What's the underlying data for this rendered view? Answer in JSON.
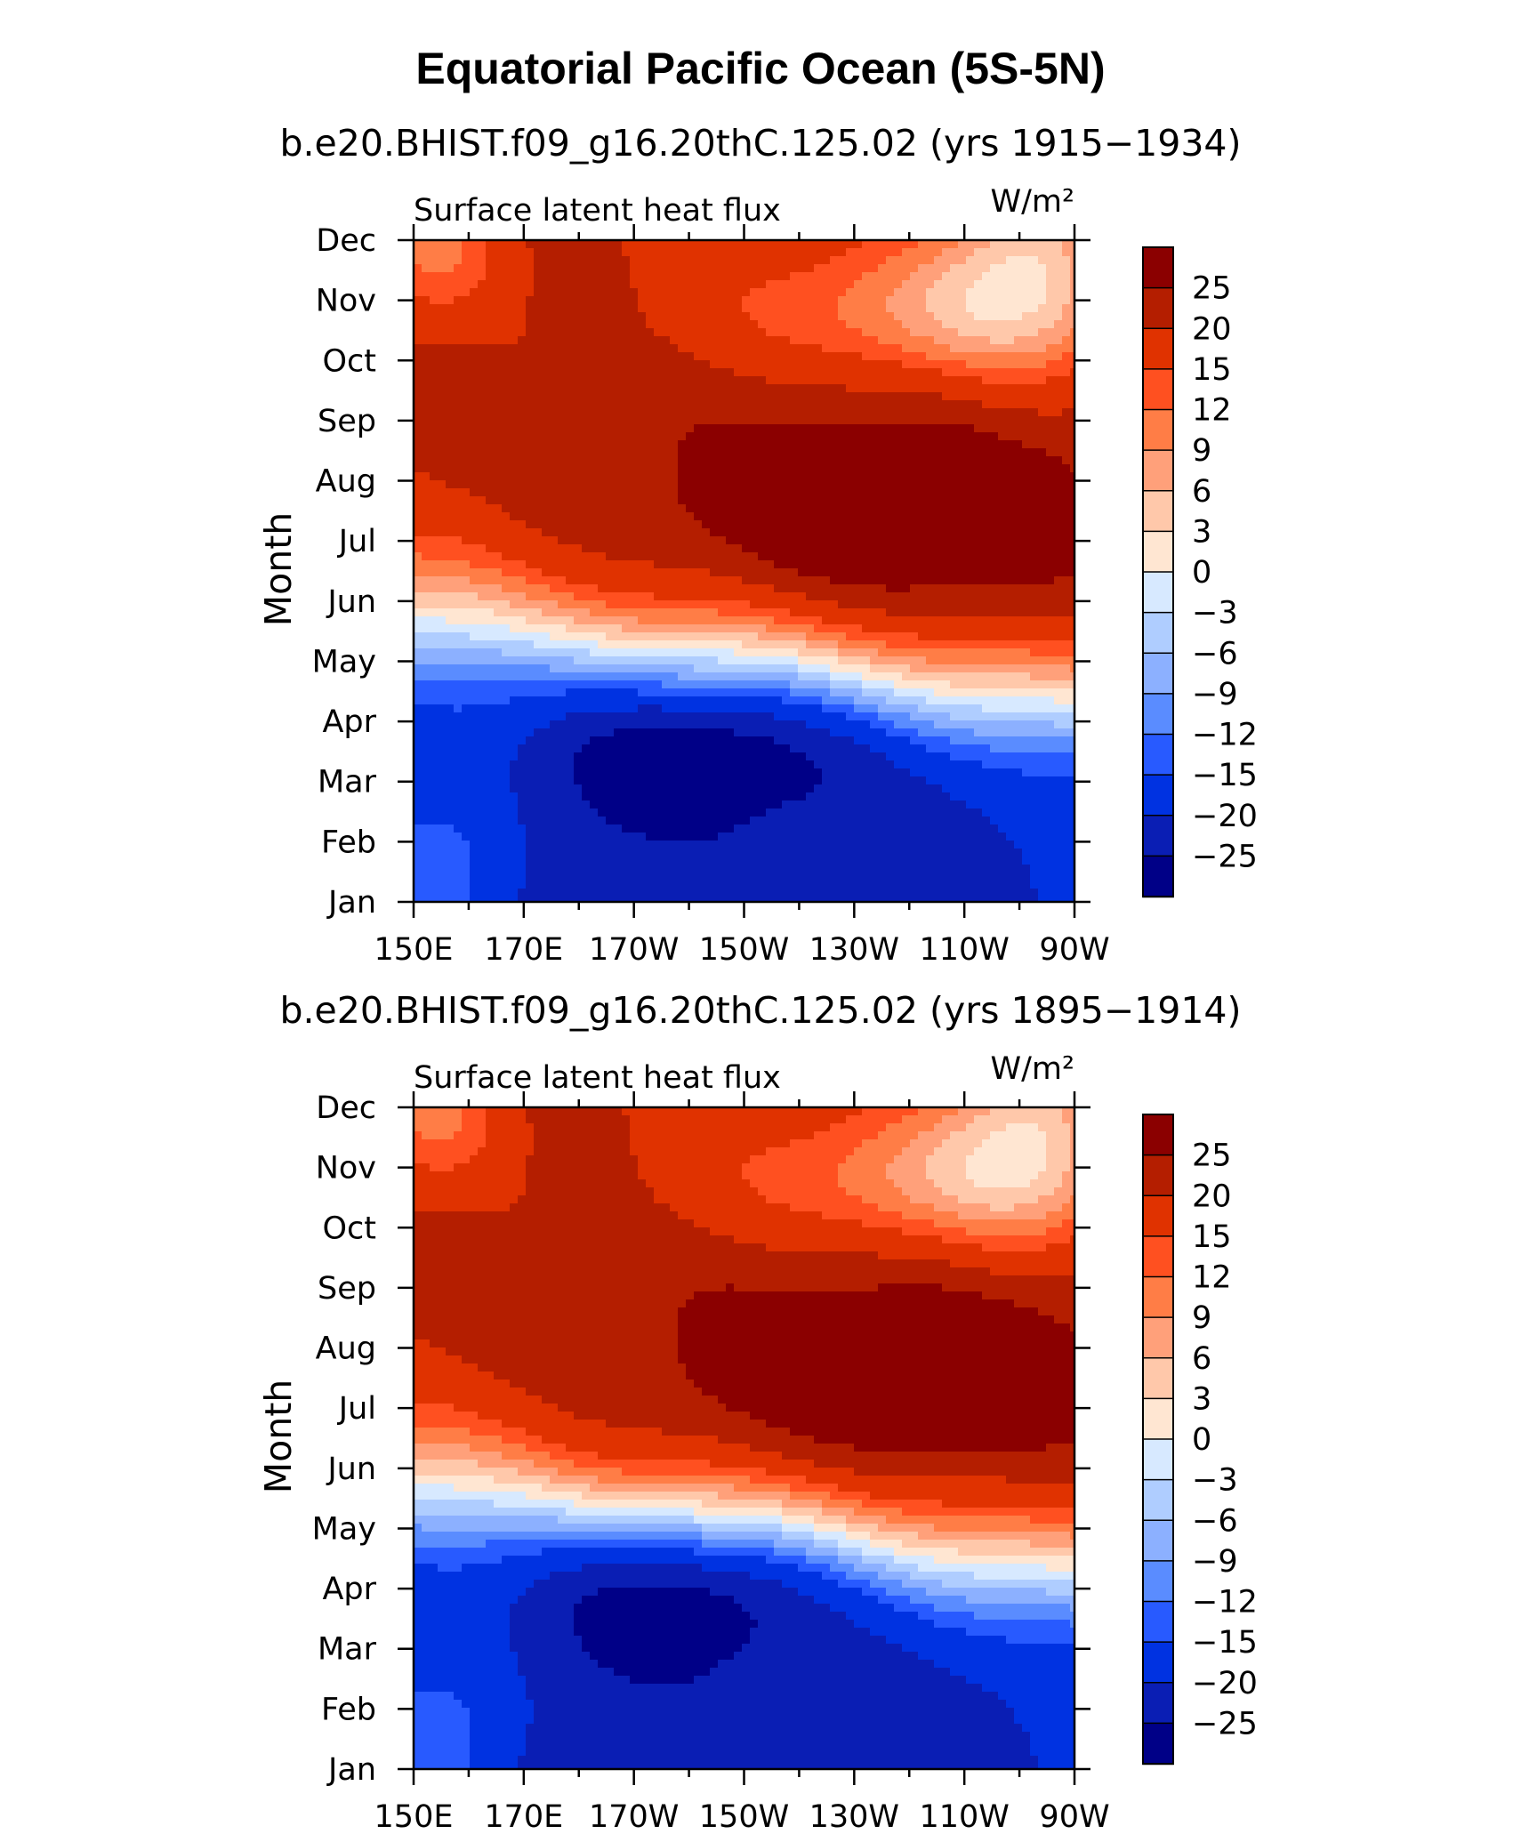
{
  "title": "Equatorial Pacific Ocean (5S-5N)",
  "colorbar": {
    "levels": [
      "25",
      "20",
      "15",
      "12",
      "9",
      "6",
      "3",
      "0",
      "−3",
      "−6",
      "−9",
      "−12",
      "−15",
      "−20",
      "−25"
    ],
    "colors": [
      "#8b0000",
      "#b41e00",
      "#e03200",
      "#ff5020",
      "#ff7d46",
      "#ffa07a",
      "#ffc8aa",
      "#ffe6d2",
      "#d7e9ff",
      "#afcdff",
      "#8cb0ff",
      "#5a8cff",
      "#285aff",
      "#0032e1",
      "#0a1eb4",
      "#000087"
    ]
  },
  "chart_data": [
    {
      "type": "heatmap",
      "subtitle": "b.e20.BHIST.f09_g16.20thC.125.02 (yrs 1915−1934)",
      "left_label": "Surface latent heat flux",
      "units_label": "W/m²",
      "ylabel": "Month",
      "x_ticks": [
        "150E",
        "170E",
        "170W",
        "150W",
        "130W",
        "110W",
        "90W"
      ],
      "y_ticks": [
        "Jan",
        "Feb",
        "Mar",
        "Apr",
        "May",
        "Jun",
        "Jul",
        "Aug",
        "Sep",
        "Oct",
        "Nov",
        "Dec"
      ],
      "longitude_range": [
        150,
        270
      ],
      "features": [
        {
          "name": "warm_max",
          "lon": 240,
          "month": 6.5,
          "value": 27
        },
        {
          "name": "cold_min",
          "lon": 205,
          "month": 2.5,
          "value": -27
        }
      ]
    },
    {
      "type": "heatmap",
      "subtitle": "b.e20.BHIST.f09_g16.20thC.125.02 (yrs 1895−1914)",
      "left_label": "Surface latent heat flux",
      "units_label": "W/m²",
      "ylabel": "Month",
      "x_ticks": [
        "150E",
        "170E",
        "170W",
        "150W",
        "130W",
        "110W",
        "90W"
      ],
      "y_ticks": [
        "Jan",
        "Feb",
        "Mar",
        "Apr",
        "May",
        "Jun",
        "Jul",
        "Aug",
        "Sep",
        "Oct",
        "Nov",
        "Dec"
      ],
      "longitude_range": [
        150,
        270
      ],
      "features": [
        {
          "name": "warm_max",
          "lon": 242,
          "month": 6.6,
          "value": 27
        },
        {
          "name": "cold_min",
          "lon": 200,
          "month": 3.0,
          "value": -27
        }
      ]
    }
  ]
}
